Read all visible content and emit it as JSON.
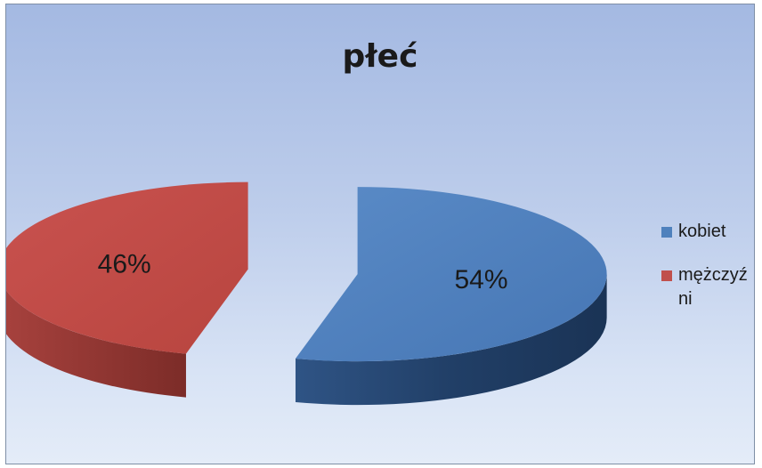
{
  "chart_data": {
    "type": "pie",
    "style": "3d-exploded",
    "title": "płeć",
    "categories": [
      "kobiet",
      "mężczyźni"
    ],
    "values": [
      54,
      46
    ],
    "labels": [
      "54%",
      "46%"
    ],
    "colors": [
      "#4f81bd",
      "#c0504d"
    ],
    "legend": {
      "placement": "right",
      "items": [
        {
          "label": "kobiet",
          "color": "#4f81bd"
        },
        {
          "label": "mężczyź ni",
          "color": "#c0504d"
        }
      ]
    },
    "background": [
      "#a4b9e2",
      "#e4ecf8"
    ]
  }
}
